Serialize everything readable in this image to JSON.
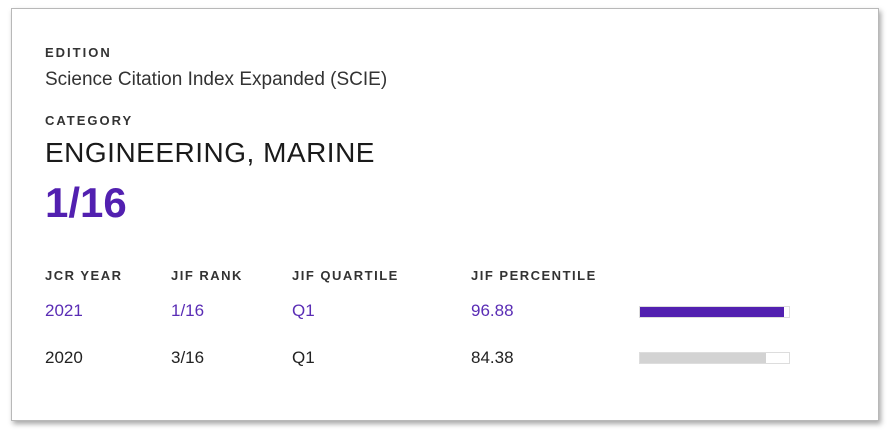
{
  "edition": {
    "label": "EDITION",
    "value": "Science Citation Index Expanded (SCIE)"
  },
  "category": {
    "label": "CATEGORY",
    "value": "ENGINEERING, MARINE",
    "rank": "1/16"
  },
  "table": {
    "headers": [
      "JCR YEAR",
      "JIF RANK",
      "JIF QUARTILE",
      "JIF PERCENTILE"
    ],
    "rows": [
      {
        "year": "2021",
        "rank": "1/16",
        "quartile": "Q1",
        "percentile": "96.88",
        "bar_color": "#5220b0"
      },
      {
        "year": "2020",
        "rank": "3/16",
        "quartile": "Q1",
        "percentile": "84.38",
        "bar_color": "#d3d3d3"
      }
    ]
  },
  "colors": {
    "accent": "#5220b0"
  }
}
